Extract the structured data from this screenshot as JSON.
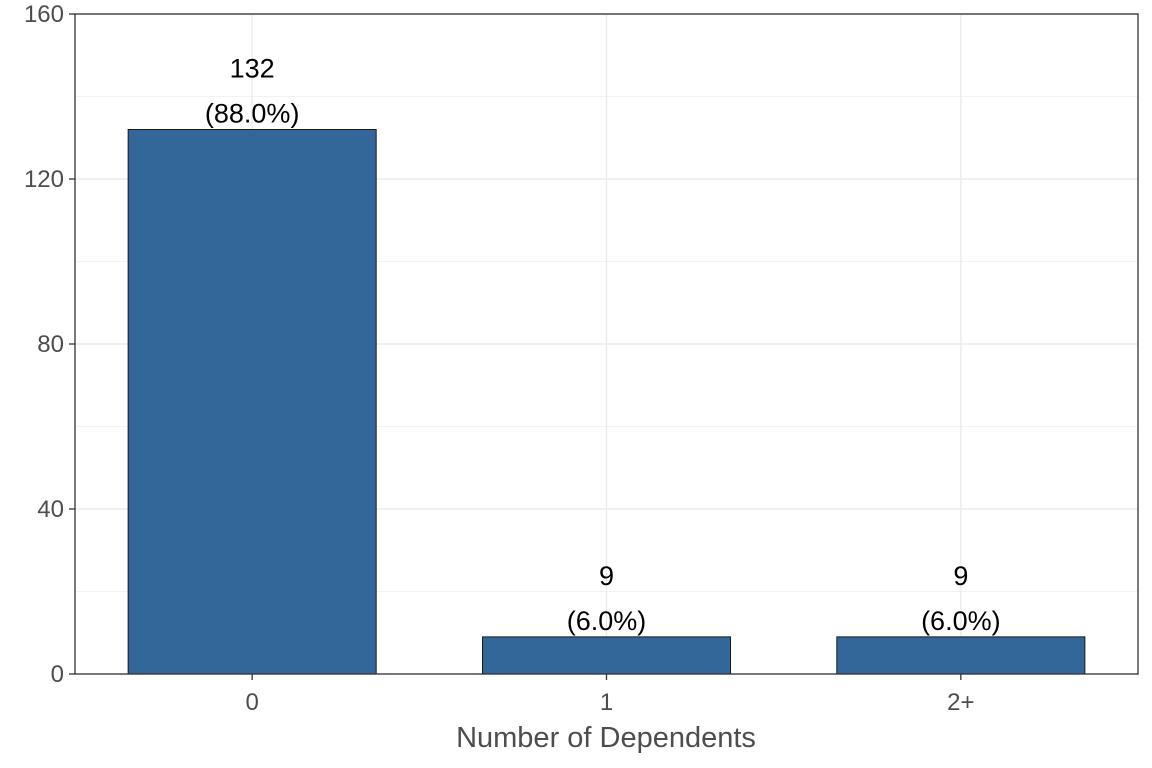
{
  "chart_data": {
    "type": "bar",
    "categories": [
      "0",
      "1",
      "2+"
    ],
    "values": [
      132,
      9,
      9
    ],
    "percent_labels": [
      "(88.0%)",
      "(6.0%)",
      "(6.0%)"
    ],
    "title": "",
    "xlabel": "Number of Dependents",
    "ylabel": "",
    "ylim": [
      0,
      160
    ],
    "yticks": [
      "0",
      "40",
      "80",
      "120",
      "160"
    ],
    "grid": true,
    "legend": "none",
    "bar_color": "#336699"
  }
}
